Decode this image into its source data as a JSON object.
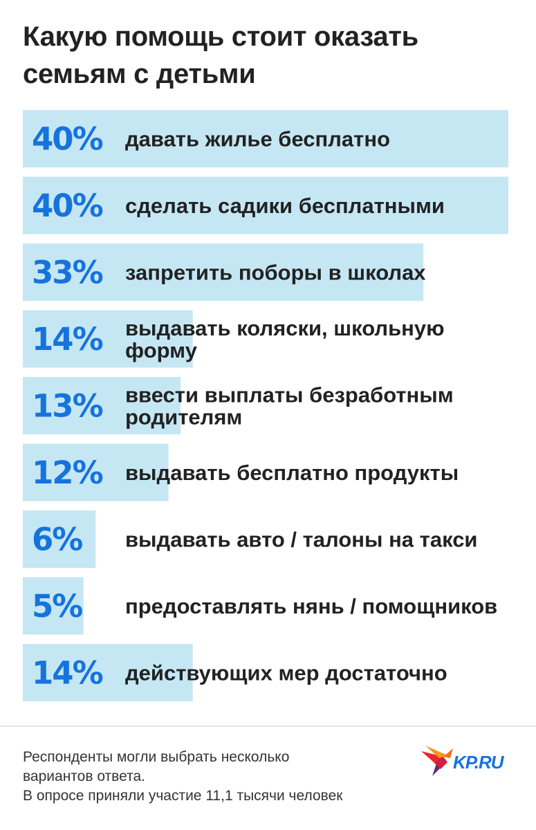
{
  "colors": {
    "accent": "#1673dd",
    "bar": "#c5e7f4",
    "text": "#222222",
    "logo_red": "#e8262b",
    "logo_orange": "#f7941d",
    "logo_purple": "#5b2a86"
  },
  "title": "Какую помощь стоит оказать семьям с детьми",
  "chart_data": {
    "type": "bar",
    "orientation": "horizontal",
    "title": "Какую помощь стоит оказать семьям с детьми",
    "unit": "%",
    "xlim": [
      0,
      40
    ],
    "categories": [
      "давать жилье бесплатно",
      "сделать садики бесплатными",
      "запретить поборы в школах",
      "выдавать коляски, школьную форму",
      "ввести выплаты безработным родителям",
      "выдавать бесплатно продукты",
      "выдавать авто / талоны на такси",
      "предоставлять нянь / помощников",
      "действующих мер достаточно"
    ],
    "label_lines": [
      [
        "давать жилье бесплатно"
      ],
      [
        "сделать садики бесплатными"
      ],
      [
        "запретить поборы в школах"
      ],
      [
        "выдавать коляски, школьную",
        "форму"
      ],
      [
        "ввести выплаты безработным",
        "родителям"
      ],
      [
        "выдавать бесплатно продукты"
      ],
      [
        "выдавать авто / талоны на такси"
      ],
      [
        "предоставлять нянь / помощников"
      ],
      [
        "действующих мер достаточно"
      ]
    ],
    "values": [
      40,
      40,
      33,
      14,
      13,
      12,
      6,
      5,
      14
    ],
    "value_labels": [
      "40%",
      "40%",
      "33%",
      "14%",
      "13%",
      "12%",
      "6%",
      "5%",
      "14%"
    ]
  },
  "footnote": {
    "line1": "Респонденты могли выбрать несколько",
    "line2": "вариантов ответа.",
    "line3": "В опросе приняли участие 11,1 тысячи человек"
  },
  "logo": {
    "text": "KP.RU",
    "icon": "kp-bird-icon"
  }
}
